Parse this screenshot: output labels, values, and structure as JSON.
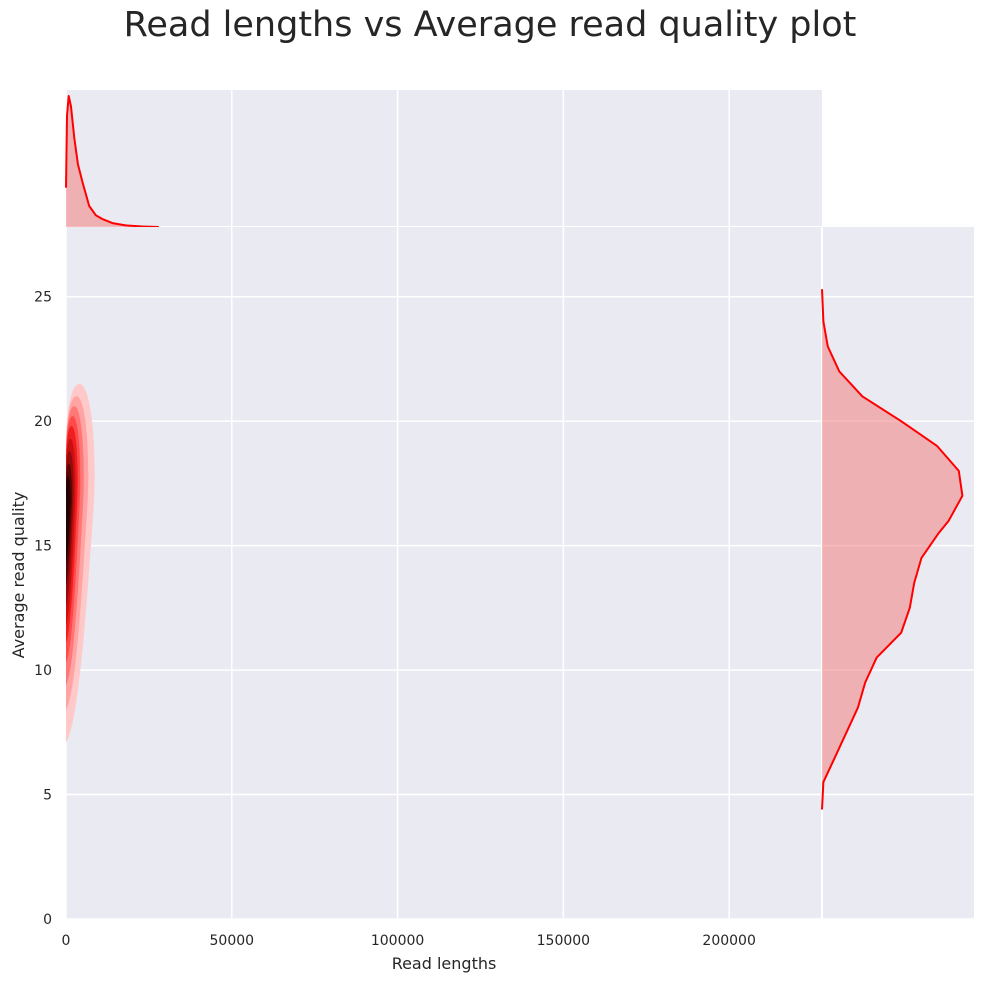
{
  "chart_data": {
    "type": "density",
    "title": "Read lengths vs Average read quality plot",
    "xlabel": "Read lengths",
    "ylabel": "Average read quality",
    "xlim": [
      0,
      228000
    ],
    "ylim": [
      0,
      27.8
    ],
    "xticks": [
      0,
      50000,
      100000,
      150000,
      200000
    ],
    "xtick_labels": [
      "0",
      "50000",
      "100000",
      "150000",
      "200000"
    ],
    "yticks": [
      0,
      5,
      10,
      15,
      20,
      25
    ],
    "ytick_labels": [
      "0",
      "5",
      "10",
      "15",
      "20",
      "25"
    ],
    "grid": true,
    "colors": {
      "background": "#EAEAF2",
      "grid": "#FFFFFF",
      "line": "#FF0000",
      "fill": "#F08080"
    },
    "joint_kde": {
      "description_fill": "filled contours, white-to-red-to-black",
      "levels": [
        {
          "x": [
            0,
            9000
          ],
          "y": [
            7.1,
            21.5
          ],
          "color": "#FFC9C9"
        },
        {
          "x": [
            0,
            7000
          ],
          "y": [
            8.4,
            21.0
          ],
          "color": "#FFA3A3"
        },
        {
          "x": [
            0,
            5600
          ],
          "y": [
            9.4,
            20.6
          ],
          "color": "#FF7777"
        },
        {
          "x": [
            0,
            4500
          ],
          "y": [
            10.3,
            20.2
          ],
          "color": "#FF4A4A"
        },
        {
          "x": [
            0,
            3700
          ],
          "y": [
            11.1,
            19.8
          ],
          "color": "#F01E1E"
        },
        {
          "x": [
            0,
            3000
          ],
          "y": [
            11.8,
            19.3
          ],
          "color": "#C81010"
        },
        {
          "x": [
            0,
            2400
          ],
          "y": [
            12.6,
            18.8
          ],
          "color": "#950A0A"
        },
        {
          "x": [
            0,
            1900
          ],
          "y": [
            13.4,
            18.3
          ],
          "color": "#5C0505"
        },
        {
          "x": [
            0,
            1400
          ],
          "y": [
            14.3,
            17.8
          ],
          "color": "#250202"
        }
      ]
    },
    "x_marginal_kde": {
      "x": [
        0,
        300,
        800,
        1500,
        2500,
        3600,
        5000,
        7000,
        9000,
        11000,
        14000,
        18000,
        23000,
        28000
      ],
      "density": [
        0.3,
        0.85,
        1.0,
        0.92,
        0.68,
        0.48,
        0.34,
        0.16,
        0.09,
        0.06,
        0.03,
        0.012,
        0.004,
        0.0
      ]
    },
    "y_marginal_kde": {
      "y": [
        4.4,
        5.5,
        6.5,
        7.5,
        8.5,
        9.5,
        10.5,
        11.5,
        12.5,
        13.5,
        14.5,
        15.5,
        16.0,
        17.0,
        18.0,
        19.0,
        20.0,
        21.0,
        22.0,
        23.0,
        24.0,
        25.3
      ],
      "density": [
        0.0,
        0.01,
        0.09,
        0.17,
        0.25,
        0.3,
        0.38,
        0.55,
        0.61,
        0.64,
        0.69,
        0.81,
        0.88,
        0.975,
        0.95,
        0.8,
        0.55,
        0.28,
        0.12,
        0.04,
        0.01,
        0.0
      ]
    }
  }
}
